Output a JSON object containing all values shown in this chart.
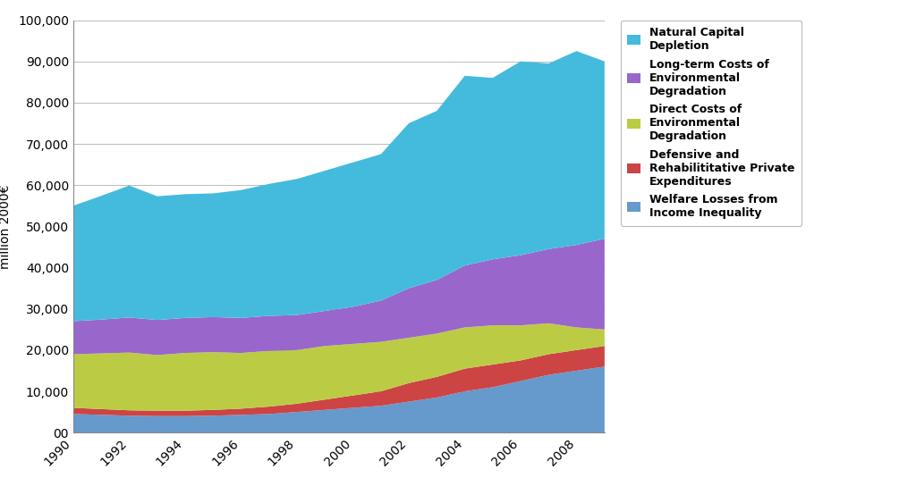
{
  "years": [
    1990,
    1991,
    1992,
    1993,
    1994,
    1995,
    1996,
    1997,
    1998,
    1999,
    2000,
    2001,
    2002,
    2003,
    2004,
    2005,
    2006,
    2007,
    2008,
    2009
  ],
  "welfare_losses": [
    4500,
    4300,
    4100,
    4000,
    4000,
    4100,
    4300,
    4500,
    5000,
    5500,
    6000,
    6500,
    7500,
    8500,
    10000,
    11000,
    12500,
    14000,
    15000,
    16000
  ],
  "defensive_rehab": [
    1500,
    1400,
    1300,
    1300,
    1300,
    1400,
    1500,
    1800,
    2000,
    2500,
    3000,
    3500,
    4500,
    5000,
    5500,
    5500,
    5000,
    5000,
    5000,
    5000
  ],
  "direct_costs": [
    13000,
    13500,
    14000,
    13500,
    14000,
    14000,
    13500,
    13500,
    13000,
    13000,
    12500,
    12000,
    11000,
    10500,
    10000,
    9500,
    8500,
    7500,
    5500,
    4000
  ],
  "longterm_costs": [
    8000,
    8200,
    8500,
    8500,
    8500,
    8500,
    8500,
    8500,
    8500,
    8500,
    9000,
    10000,
    12000,
    13000,
    15000,
    16000,
    17000,
    18000,
    20000,
    22000
  ],
  "natural_capital": [
    28000,
    30000,
    32000,
    30000,
    30000,
    30000,
    31000,
    32000,
    33000,
    34000,
    35000,
    35500,
    40000,
    41000,
    46000,
    44000,
    47000,
    45000,
    47000,
    43000
  ],
  "welfare_losses_color": "#6699CC",
  "defensive_rehab_color": "#CC4444",
  "direct_costs_color": "#BBCC44",
  "longterm_costs_color": "#9966CC",
  "natural_capital_color": "#44BBDD",
  "ylabel": "million 2000€",
  "ylim": [
    0,
    100000
  ],
  "yticks": [
    0,
    10000,
    20000,
    30000,
    40000,
    50000,
    60000,
    70000,
    80000,
    90000,
    100000
  ],
  "ytick_labels": [
    "00",
    "10,000",
    "20,000",
    "30,000",
    "40,000",
    "50,000",
    "60,000",
    "70,000",
    "80,000",
    "90,000",
    "100,000"
  ],
  "xtick_labels": [
    "1990",
    "1992",
    "1994",
    "1996",
    "1998",
    "2000",
    "2002",
    "2004",
    "2006",
    "2008"
  ],
  "legend_labels": [
    "Natural Capital\nDepletion",
    "Long-term Costs of\nEnvironmental\nDegradation",
    "Direct Costs of\nEnvironmental\nDegradation",
    "Defensive and\nRehabilititative Private\nExpenditures",
    "Welfare Losses from\nIncome Inequality"
  ],
  "legend_colors": [
    "#44BBDD",
    "#9966CC",
    "#BBCC44",
    "#CC4444",
    "#6699CC"
  ],
  "background_color": "#FFFFFF",
  "grid_color": "#BBBBBB",
  "font_size": 10,
  "legend_font_size": 9,
  "figsize": [
    10.24,
    5.63
  ],
  "dpi": 100
}
